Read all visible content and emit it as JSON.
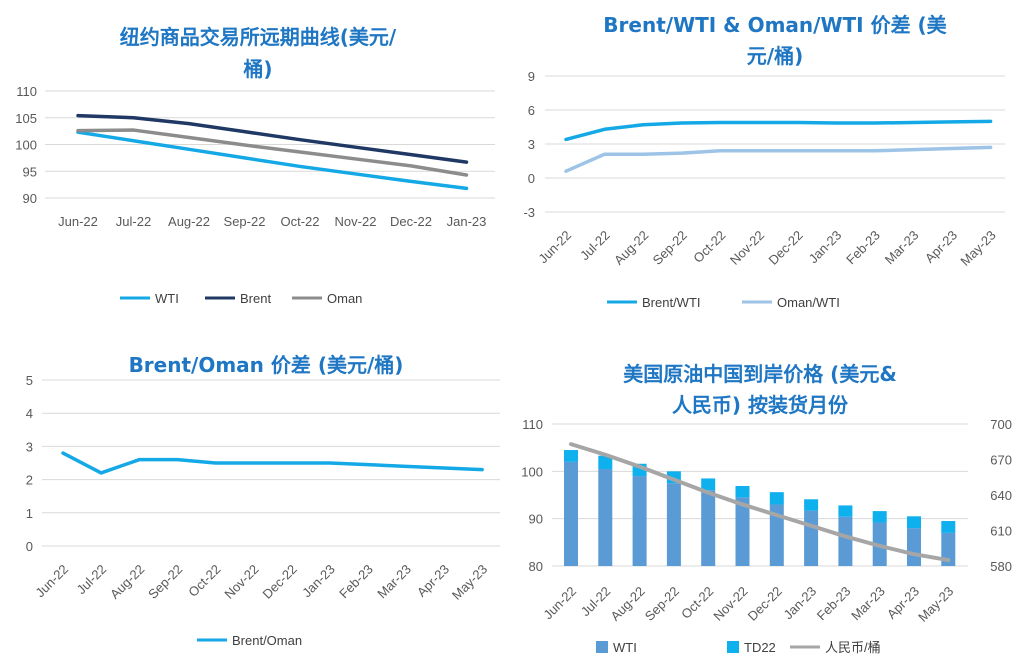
{
  "colors": {
    "wti": "#14a9e6",
    "brent": "#1f3864",
    "oman": "#8c8c8c",
    "oman_wti": "#9dc3e6",
    "bar_wti": "#5b9bd5",
    "bar_td22": "#0fb0ee",
    "rmb": "#a6a6a6",
    "title": "#1f77c4"
  },
  "chart_data": [
    {
      "type": "line",
      "title_lines": [
        "纽约商品交易所远期曲线(美元/",
        "桶)"
      ],
      "categories": [
        "Jun-22",
        "Jul-22",
        "Aug-22",
        "Sep-22",
        "Oct-22",
        "Nov-22",
        "Dec-22",
        "Jan-23"
      ],
      "ylim": [
        90,
        110
      ],
      "yticks": [
        90,
        95,
        100,
        105,
        110
      ],
      "grid": true,
      "legend_position": "bottom",
      "series": [
        {
          "name": "WTI",
          "values": [
            102.3,
            100.7,
            99.1,
            97.5,
            95.9,
            94.5,
            93.1,
            91.8
          ]
        },
        {
          "name": "Brent",
          "values": [
            105.4,
            105.0,
            103.9,
            102.4,
            100.9,
            99.5,
            98.1,
            96.7
          ]
        },
        {
          "name": "Oman",
          "values": [
            102.6,
            102.7,
            101.3,
            99.9,
            98.6,
            97.3,
            96.0,
            94.3
          ]
        }
      ]
    },
    {
      "type": "line",
      "title_lines": [
        "Brent/WTI & Oman/WTI 价差 (美",
        "元/桶)"
      ],
      "categories": [
        "Jun-22",
        "Jul-22",
        "Aug-22",
        "Sep-22",
        "Oct-22",
        "Nov-22",
        "Dec-22",
        "Jan-23",
        "Feb-23",
        "Mar-23",
        "Apr-23",
        "May-23"
      ],
      "ylim": [
        -3,
        9
      ],
      "yticks": [
        -3,
        0,
        3,
        6,
        9
      ],
      "grid": true,
      "legend_position": "bottom",
      "series": [
        {
          "name": "Brent/WTI",
          "values": [
            3.4,
            4.3,
            4.7,
            4.85,
            4.9,
            4.9,
            4.9,
            4.85,
            4.85,
            4.9,
            4.95,
            5.0
          ]
        },
        {
          "name": "Oman/WTI",
          "values": [
            0.6,
            2.1,
            2.1,
            2.2,
            2.4,
            2.4,
            2.4,
            2.4,
            2.4,
            2.5,
            2.6,
            2.7
          ]
        }
      ]
    },
    {
      "type": "line",
      "title_lines": [
        "Brent/Oman 价差 (美元/桶)"
      ],
      "categories": [
        "Jun-22",
        "Jul-22",
        "Aug-22",
        "Sep-22",
        "Oct-22",
        "Nov-22",
        "Dec-22",
        "Jan-23",
        "Feb-23",
        "Mar-23",
        "Apr-23",
        "May-23"
      ],
      "ylim": [
        0,
        5
      ],
      "yticks": [
        0,
        1,
        2,
        3,
        4,
        5
      ],
      "grid": true,
      "legend_position": "bottom",
      "series": [
        {
          "name": "Brent/Oman",
          "values": [
            2.8,
            2.2,
            2.6,
            2.6,
            2.5,
            2.5,
            2.5,
            2.5,
            2.45,
            2.4,
            2.35,
            2.3
          ]
        }
      ]
    },
    {
      "type": "bar",
      "title_lines": [
        "美国原油中国到岸价格 (美元&",
        "人民币) 按装货月份"
      ],
      "categories": [
        "Jun-22",
        "Jul-22",
        "Aug-22",
        "Sep-22",
        "Oct-22",
        "Nov-22",
        "Dec-22",
        "Jan-23",
        "Feb-23",
        "Mar-23",
        "Apr-23",
        "May-23"
      ],
      "ylim": [
        80,
        110
      ],
      "yticks": [
        80,
        90,
        100,
        110
      ],
      "y2lim": [
        580,
        700
      ],
      "y2ticks": [
        580,
        610,
        640,
        670,
        700
      ],
      "grid": true,
      "legend_position": "bottom",
      "series": [
        {
          "name": "WTI",
          "kind": "stacked-bar",
          "values": [
            102.0,
            100.5,
            99.0,
            97.5,
            96.0,
            94.5,
            93.0,
            91.7,
            90.4,
            89.2,
            88.0,
            87.0
          ]
        },
        {
          "name": "TD22",
          "kind": "stacked-bar",
          "values": [
            2.5,
            2.8,
            2.6,
            2.5,
            2.5,
            2.4,
            2.6,
            2.4,
            2.4,
            2.4,
            2.5,
            2.5
          ]
        },
        {
          "name": "人民币/桶",
          "kind": "line",
          "axis": "right",
          "values": [
            683,
            674,
            664,
            653,
            642,
            632,
            623,
            614,
            605,
            597,
            590,
            585
          ]
        }
      ]
    }
  ]
}
